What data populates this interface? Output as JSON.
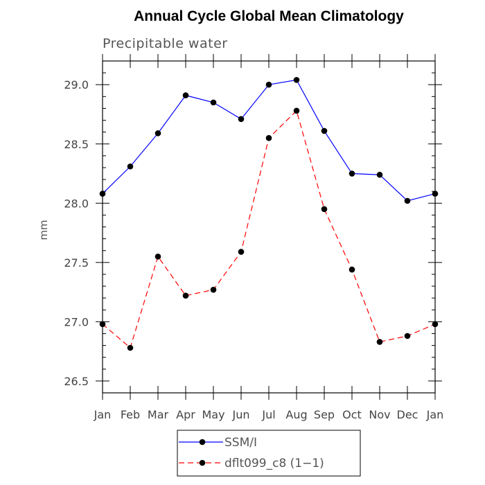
{
  "chart_data": {
    "type": "line",
    "title": "Annual Cycle Global Mean Climatology",
    "subtitle": "Precipitable water",
    "xlabel": "",
    "ylabel": "mm",
    "categories": [
      "Jan",
      "Feb",
      "Mar",
      "Apr",
      "May",
      "Jun",
      "Jul",
      "Aug",
      "Sep",
      "Oct",
      "Nov",
      "Dec",
      "Jan"
    ],
    "ylim": [
      26.4,
      29.2
    ],
    "yticks": [
      "26.5",
      "27.0",
      "27.5",
      "28.0",
      "28.5",
      "29.0"
    ],
    "grid": false,
    "legend_position": "bottom",
    "series": [
      {
        "name": "SSM/I",
        "color": "#0000ff",
        "dash": "solid",
        "marker": "circle",
        "values": [
          28.08,
          28.31,
          28.59,
          28.91,
          28.85,
          28.71,
          29.0,
          29.04,
          28.61,
          28.25,
          28.24,
          28.02,
          28.08
        ]
      },
      {
        "name": "dflt099_c8 (1−1)",
        "color": "#ff0000",
        "dash": "dashed",
        "marker": "circle",
        "values": [
          26.98,
          26.78,
          27.55,
          27.22,
          27.27,
          27.59,
          28.55,
          28.78,
          27.95,
          27.44,
          26.83,
          26.88,
          26.98
        ]
      }
    ]
  }
}
